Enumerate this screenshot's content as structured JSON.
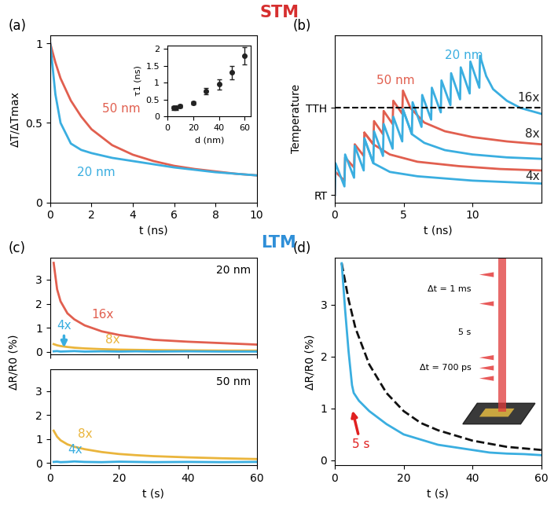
{
  "headings": {
    "stm": {
      "text": "STM",
      "color": "#d62f2f"
    },
    "ltm": {
      "text": "LTM",
      "color": "#2f8fd8"
    }
  },
  "chart_data": [
    {
      "type": "line",
      "panel": "(a)",
      "xlabel": "t (ns)",
      "ylabel": "ΔT/ΔTmax",
      "xlim": [
        0,
        10
      ],
      "xticks": [
        0,
        2,
        4,
        6,
        8,
        10
      ],
      "ylim": [
        0,
        1.05
      ],
      "yticks": [
        0,
        0.5,
        1
      ],
      "grid": false,
      "series": [
        {
          "name": "50 nm",
          "color": "#e15f4f",
          "line_style": "solid",
          "x": [
            0,
            0.25,
            0.5,
            1,
            1.5,
            2,
            3,
            4,
            5,
            6,
            7,
            8,
            9,
            10
          ],
          "values": [
            1,
            0.88,
            0.78,
            0.64,
            0.54,
            0.46,
            0.36,
            0.3,
            0.26,
            0.23,
            0.21,
            0.195,
            0.18,
            0.17
          ]
        },
        {
          "name": "20 nm",
          "color": "#3aaee0",
          "line_style": "solid",
          "x": [
            0,
            0.25,
            0.5,
            1,
            1.5,
            2,
            3,
            4,
            5,
            6,
            7,
            8,
            9,
            10
          ],
          "values": [
            1,
            0.68,
            0.5,
            0.37,
            0.33,
            0.31,
            0.28,
            0.26,
            0.24,
            0.22,
            0.205,
            0.19,
            0.18,
            0.17
          ]
        }
      ],
      "annotations": [
        {
          "text": "50 nm",
          "x": 2.5,
          "y": 0.55,
          "color": "#e15f4f"
        },
        {
          "text": "20 nm",
          "x": 1.3,
          "y": 0.15,
          "color": "#3aaee0"
        }
      ]
    },
    {
      "type": "scatter",
      "xlabel": "d (nm)",
      "ylabel": "τ1 (ns)",
      "color": "#222222",
      "marker": "circle",
      "x": [
        5,
        7,
        10,
        20,
        30,
        40,
        50,
        60
      ],
      "values": [
        0.25,
        0.25,
        0.3,
        0.4,
        0.75,
        0.95,
        1.3,
        1.8
      ],
      "errors": [
        0.05,
        0.05,
        0.05,
        0.05,
        0.1,
        0.15,
        0.2,
        0.25
      ],
      "xlim": [
        0,
        65
      ],
      "xticks": [
        0,
        20,
        40,
        60
      ],
      "ylim": [
        0,
        2.1
      ],
      "yticks": [
        0,
        0.5,
        1,
        1.5,
        2
      ],
      "grid": false
    },
    {
      "type": "line",
      "panel": "(b)",
      "xlabel": "t (ns)",
      "ylabel": "Temperature",
      "xlim": [
        0,
        15
      ],
      "xticks": [
        0,
        5,
        10
      ],
      "ylim": [
        -0.05,
        1.1
      ],
      "yticks": [
        {
          "value": 0,
          "label": "RT"
        },
        {
          "value": 0.6,
          "label": "TTH"
        }
      ],
      "grid": false,
      "threshold": 0.6,
      "series": [
        {
          "name": "50 nm",
          "color": "#e15f4f",
          "line_style": "solid",
          "x": [
            0,
            0.05,
            0.7,
            0.75,
            1.4,
            1.45,
            2.1,
            2.15,
            2.8,
            2.85,
            3.5,
            3.55,
            4.2,
            4.25,
            4.9,
            4.95,
            5.5,
            6.5,
            8,
            10,
            12.5,
            15
          ],
          "values": [
            0,
            0.16,
            0.1,
            0.26,
            0.19,
            0.35,
            0.27,
            0.43,
            0.35,
            0.51,
            0.42,
            0.58,
            0.49,
            0.65,
            0.56,
            0.72,
            0.6,
            0.5,
            0.44,
            0.4,
            0.37,
            0.35
          ]
        },
        {
          "color": "#e15f4f",
          "line_style": "solid",
          "x": [
            2.15,
            2.8,
            4,
            6,
            9,
            12,
            15
          ],
          "values": [
            0.43,
            0.35,
            0.28,
            0.23,
            0.2,
            0.18,
            0.17
          ]
        },
        {
          "name": "20 nm",
          "color": "#3aaee0",
          "line_style": "solid",
          "x": [
            0,
            0.05,
            0.7,
            0.75,
            1.4,
            1.45,
            2.1,
            2.15,
            2.8,
            2.85,
            3.5,
            3.55,
            4.2,
            4.25,
            4.9,
            4.95,
            5.6,
            5.65,
            6.3,
            6.35,
            7.0,
            7.05,
            7.7,
            7.75,
            8.4,
            8.45,
            9.1,
            9.15,
            9.8,
            9.85,
            10.5,
            10.55,
            11,
            11.5,
            12.5,
            13.5,
            15
          ],
          "values": [
            0,
            0.22,
            0.06,
            0.28,
            0.12,
            0.34,
            0.17,
            0.39,
            0.22,
            0.44,
            0.27,
            0.49,
            0.32,
            0.54,
            0.37,
            0.59,
            0.42,
            0.64,
            0.47,
            0.69,
            0.52,
            0.74,
            0.57,
            0.79,
            0.62,
            0.84,
            0.66,
            0.88,
            0.7,
            0.92,
            0.74,
            0.96,
            0.82,
            0.73,
            0.65,
            0.6,
            0.56
          ]
        },
        {
          "color": "#3aaee0",
          "line_style": "solid",
          "x": [
            2.15,
            2.8,
            4,
            6,
            10,
            15
          ],
          "values": [
            0.39,
            0.22,
            0.16,
            0.13,
            0.1,
            0.08
          ]
        },
        {
          "color": "#3aaee0",
          "line_style": "solid",
          "x": [
            4.95,
            5.6,
            6.5,
            8,
            10,
            12.5,
            15
          ],
          "values": [
            0.59,
            0.42,
            0.36,
            0.31,
            0.28,
            0.26,
            0.25
          ]
        }
      ],
      "annotations": [
        {
          "text": "50 nm",
          "x": 3.0,
          "y": 0.75,
          "color": "#e15f4f"
        },
        {
          "text": "20 nm",
          "x": 8.0,
          "y": 0.92,
          "color": "#3aaee0"
        },
        {
          "text": "16x",
          "x": 14.9,
          "y": 0.63,
          "color": "#222222"
        },
        {
          "text": "8x",
          "x": 14.9,
          "y": 0.38,
          "color": "#222222"
        },
        {
          "text": "4x",
          "x": 14.9,
          "y": 0.09,
          "color": "#222222"
        }
      ]
    },
    {
      "type": "line",
      "panel": "(c)",
      "ylabel": "ΔR/R0 (%)",
      "title": "20 nm",
      "tick_labels": "y",
      "xlim": [
        0,
        60
      ],
      "xticks": [
        0,
        20,
        40,
        60
      ],
      "ylim": [
        -0.1,
        3.9
      ],
      "yticks": [
        0,
        1,
        2,
        3
      ],
      "grid": false,
      "series": [
        {
          "name": "16x",
          "color": "#e15f4f",
          "line_style": "solid",
          "x": [
            1,
            2,
            3,
            5,
            7,
            10,
            15,
            20,
            25,
            30,
            40,
            50,
            60
          ],
          "values": [
            3.7,
            2.6,
            2.1,
            1.6,
            1.35,
            1.1,
            0.85,
            0.7,
            0.6,
            0.5,
            0.42,
            0.36,
            0.3
          ]
        },
        {
          "name": "8x",
          "color": "#eab53c",
          "line_style": "solid",
          "x": [
            1,
            2,
            3,
            5,
            7,
            10,
            15,
            20,
            25,
            30,
            40,
            50,
            60
          ],
          "values": [
            0.32,
            0.27,
            0.24,
            0.2,
            0.17,
            0.14,
            0.11,
            0.09,
            0.08,
            0.07,
            0.06,
            0.05,
            0.05
          ]
        },
        {
          "name": "4x",
          "color": "#3aaee0",
          "line_style": "solid",
          "x": [
            1,
            2,
            3,
            5,
            7,
            10,
            15,
            20,
            25,
            30,
            40,
            50,
            60
          ],
          "values": [
            0.02,
            0.03,
            0.01,
            0.02,
            0.03,
            0.01,
            0.02,
            0.01,
            0.02,
            0.01,
            0.02,
            0.01,
            0.01
          ]
        }
      ],
      "annotations": [
        {
          "text": "16x",
          "x": 12,
          "y": 1.3,
          "color": "#e15f4f"
        },
        {
          "text": "8x",
          "x": 16,
          "y": 0.25,
          "color": "#eab53c"
        },
        {
          "text": "4x",
          "x": 4,
          "y": 0.85,
          "color": "#3aaee0",
          "arrow_to": [
            4,
            0.08
          ]
        }
      ]
    },
    {
      "type": "line",
      "title": "50 nm",
      "xlabel": "t (s)",
      "xlim": [
        0,
        60
      ],
      "xticks": [
        0,
        20,
        40,
        60
      ],
      "ylim": [
        -0.1,
        3.9
      ],
      "yticks": [
        0,
        1,
        2,
        3
      ],
      "grid": false,
      "series": [
        {
          "name": "8x",
          "color": "#eab53c",
          "line_style": "solid",
          "x": [
            1,
            2,
            3,
            5,
            7,
            10,
            15,
            20,
            25,
            30,
            40,
            50,
            60
          ],
          "values": [
            1.35,
            1.1,
            0.95,
            0.78,
            0.68,
            0.58,
            0.46,
            0.38,
            0.33,
            0.29,
            0.24,
            0.2,
            0.17
          ]
        },
        {
          "name": "4x",
          "color": "#3aaee0",
          "line_style": "solid",
          "x": [
            1,
            2,
            3,
            5,
            7,
            10,
            15,
            20,
            25,
            30,
            40,
            50,
            60
          ],
          "values": [
            0.05,
            0.06,
            0.04,
            0.05,
            0.07,
            0.05,
            0.04,
            0.06,
            0.05,
            0.04,
            0.05,
            0.04,
            0.05
          ]
        }
      ],
      "annotations": [
        {
          "text": "8x",
          "x": 8,
          "y": 0.95,
          "color": "#eab53c"
        },
        {
          "text": "4x",
          "x": 5,
          "y": 0.3,
          "color": "#3aaee0"
        }
      ]
    },
    {
      "type": "line",
      "panel": "(d)",
      "xlabel": "t (s)",
      "ylabel": "ΔR/R0 (%)",
      "xlim": [
        0,
        60
      ],
      "xticks": [
        0,
        20,
        40,
        60
      ],
      "ylim": [
        -0.1,
        3.9
      ],
      "yticks": [
        0,
        1,
        2,
        3
      ],
      "grid": false,
      "series": [
        {
          "color": "#111111",
          "line_style": "dashed",
          "x": [
            2,
            4,
            6,
            10,
            15,
            20,
            25,
            30,
            40,
            50,
            60
          ],
          "values": [
            3.8,
            3.1,
            2.55,
            1.85,
            1.3,
            0.95,
            0.72,
            0.58,
            0.38,
            0.26,
            0.2
          ]
        },
        {
          "color": "#3aaee0",
          "line_style": "solid",
          "x": [
            2,
            3,
            4,
            5,
            5.5,
            7,
            10,
            15,
            20,
            25,
            30,
            35,
            40,
            45,
            50,
            55,
            60
          ],
          "values": [
            3.8,
            2.9,
            2.1,
            1.45,
            1.3,
            1.15,
            0.95,
            0.7,
            0.5,
            0.4,
            0.3,
            0.25,
            0.2,
            0.15,
            0.13,
            0.12,
            0.1
          ]
        }
      ],
      "annotations": [
        {
          "text": "5 s",
          "x": 7.5,
          "y": 0.2,
          "color": "#e02020",
          "arrow_to": [
            5,
            1.0
          ]
        }
      ],
      "schematic": {
        "upper_interval": "Δt = 1 ms",
        "period": "5 s",
        "lower_interval": "Δt = 700 ps"
      }
    }
  ]
}
